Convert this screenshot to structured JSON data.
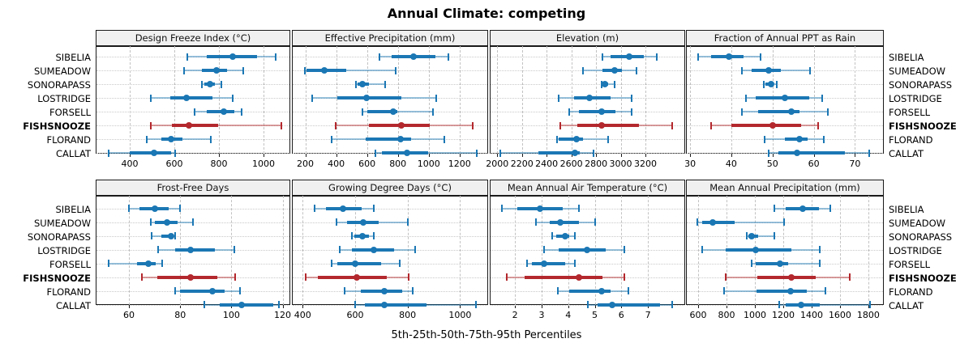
{
  "title": "Annual Climate: competing",
  "caption": "5th-25th-50th-75th-95th Percentiles",
  "sites": [
    "SIBELIA",
    "SUMEADOW",
    "SONORAPASS",
    "LOSTRIDGE",
    "FORSELL",
    "FISHSNOOZE",
    "FLORAND",
    "CALLAT"
  ],
  "highlight_site": "FISHSNOOZE",
  "colors": {
    "normal_dark": "#1B77B4",
    "normal_light": "rgba(27,119,180,0.45)",
    "highlight_dark": "#B3282D",
    "highlight_light": "rgba(179,40,45,0.45)",
    "strip_bg": "#F0F0F0",
    "gridline": "#c2c2c2"
  },
  "chart_data": {
    "type": "dotplot-percentile-intervals",
    "grid": {
      "rows": 2,
      "cols": 4
    },
    "percentiles": [
      5,
      25,
      50,
      75,
      95
    ],
    "legend_position": "none",
    "grid_on": true,
    "panels": [
      {
        "title": "Design Freeze Index (°C)",
        "ticks": [
          400,
          600,
          800,
          1000
        ],
        "xlim": [
          247,
          1120
        ],
        "series": [
          {
            "site": "SIBELIA",
            "values": [
              658,
              746,
              860,
              971,
              1055
            ]
          },
          {
            "site": "SUMEADOW",
            "values": [
              645,
              725,
              790,
              835,
              910
            ]
          },
          {
            "site": "SONORAPASS",
            "values": [
              725,
              735,
              760,
              782,
              810
            ]
          },
          {
            "site": "LOSTRIDGE",
            "values": [
              495,
              580,
              655,
              770,
              860
            ]
          },
          {
            "site": "FORSELL",
            "values": [
              690,
              745,
              820,
              870,
              900
            ]
          },
          {
            "site": "FISHSNOOZE",
            "values": [
              495,
              590,
              665,
              795,
              1080
            ]
          },
          {
            "site": "FLORAND",
            "values": [
              475,
              540,
              585,
              635,
              765
            ]
          },
          {
            "site": "CALLAT",
            "values": [
              305,
              400,
              510,
              585,
              605
            ]
          }
        ]
      },
      {
        "title": "Effective Precipitation (mm)",
        "ticks": [
          200,
          400,
          600,
          800,
          1000,
          1200
        ],
        "xlim": [
          113,
          1385
        ],
        "series": [
          {
            "site": "SIBELIA",
            "values": [
              680,
              760,
              900,
              1045,
              1130
            ]
          },
          {
            "site": "SUMEADOW",
            "values": [
              195,
              210,
              325,
              465,
              785
            ]
          },
          {
            "site": "SONORAPASS",
            "values": [
              530,
              540,
              570,
              610,
              720
            ]
          },
          {
            "site": "LOSTRIDGE",
            "values": [
              245,
              405,
              595,
              825,
              1050
            ]
          },
          {
            "site": "FORSELL",
            "values": [
              570,
              600,
              770,
              795,
              1030
            ]
          },
          {
            "site": "FISHSNOOZE",
            "values": [
              395,
              610,
              825,
              1005,
              1285
            ]
          },
          {
            "site": "FLORAND",
            "values": [
              370,
              590,
              815,
              885,
              1100
            ]
          },
          {
            "site": "CALLAT",
            "values": [
              655,
              695,
              860,
              995,
              1310
            ]
          }
        ]
      },
      {
        "title": "Elevation (m)",
        "ticks": [
          2000,
          2200,
          2400,
          2600,
          2800,
          3000,
          3200
        ],
        "xlim": [
          1939,
          3522
        ],
        "series": [
          {
            "site": "SIBELIA",
            "values": [
              2855,
              2920,
              3070,
              3190,
              3290
            ]
          },
          {
            "site": "SUMEADOW",
            "values": [
              2695,
              2855,
              2950,
              3010,
              3130
            ]
          },
          {
            "site": "SONORAPASS",
            "values": [
              2845,
              2850,
              2870,
              2900,
              2950
            ]
          },
          {
            "site": "LOSTRIDGE",
            "values": [
              2495,
              2625,
              2750,
              2920,
              3090
            ]
          },
          {
            "site": "FORSELL",
            "values": [
              2585,
              2660,
              2845,
              2960,
              3090
            ]
          },
          {
            "site": "FISHSNOOZE",
            "values": [
              2510,
              2650,
              2845,
              3150,
              3420
            ]
          },
          {
            "site": "FLORAND",
            "values": [
              2485,
              2500,
              2640,
              2695,
              2900
            ]
          },
          {
            "site": "CALLAT",
            "values": [
              2025,
              2335,
              2630,
              2670,
              2780
            ]
          }
        ]
      },
      {
        "title": "Fraction of Annual PPT as Rain",
        "ticks": [
          30,
          40,
          50,
          60,
          70
        ],
        "xlim": [
          29,
          77
        ],
        "series": [
          {
            "site": "SIBELIA",
            "values": [
              32,
              35,
              39.5,
              43,
              47
            ]
          },
          {
            "site": "SUMEADOW",
            "values": [
              42.5,
              45,
              49,
              52,
              59
            ]
          },
          {
            "site": "SONORAPASS",
            "values": [
              47.8,
              48.2,
              49.7,
              50.2,
              51
            ]
          },
          {
            "site": "LOSTRIDGE",
            "values": [
              43.5,
              46,
              53,
              59,
              62
            ]
          },
          {
            "site": "FORSELL",
            "values": [
              42.5,
              46.5,
              54.5,
              56.5,
              63.5
            ]
          },
          {
            "site": "FISHSNOOZE",
            "values": [
              35,
              40,
              50,
              57,
              61
            ]
          },
          {
            "site": "FLORAND",
            "values": [
              48,
              53,
              56.5,
              58.5,
              62.5
            ]
          },
          {
            "site": "CALLAT",
            "values": [
              49,
              51.5,
              56,
              67.5,
              73.5
            ]
          }
        ]
      },
      {
        "title": "Frost-Free Days",
        "ticks": [
          60,
          80,
          100,
          120
        ],
        "xlim": [
          47,
          123
        ],
        "series": [
          {
            "site": "SIBELIA",
            "values": [
              60,
              64,
              70,
              75.5,
              80
            ]
          },
          {
            "site": "SUMEADOW",
            "values": [
              68.5,
              70,
              75,
              79,
              85
            ]
          },
          {
            "site": "SONORAPASS",
            "values": [
              69,
              72.5,
              76.5,
              77,
              78
            ]
          },
          {
            "site": "LOSTRIDGE",
            "values": [
              71.5,
              78,
              84,
              93.5,
              101
            ]
          },
          {
            "site": "FORSELL",
            "values": [
              52,
              63,
              67.5,
              70.5,
              73
            ]
          },
          {
            "site": "FISHSNOOZE",
            "values": [
              65,
              71,
              84,
              94.5,
              101.5
            ]
          },
          {
            "site": "FLORAND",
            "values": [
              78,
              80,
              92.5,
              97.5,
              103.5
            ]
          },
          {
            "site": "CALLAT",
            "values": [
              89.5,
              95.5,
              104,
              116.5,
              118.5
            ]
          }
        ]
      },
      {
        "title": "Growing Degree Days (°C)",
        "ticks": [
          400,
          600,
          800,
          1000
        ],
        "xlim": [
          359,
          1107
        ],
        "series": [
          {
            "site": "SIBELIA",
            "values": [
              445,
              490,
              555,
              625,
              670
            ]
          },
          {
            "site": "SUMEADOW",
            "values": [
              530,
              570,
              630,
              690,
              800
            ]
          },
          {
            "site": "SONORAPASS",
            "values": [
              588,
              596,
              629,
              653,
              670
            ]
          },
          {
            "site": "LOSTRIDGE",
            "values": [
              540,
              588,
              671,
              748,
              828
            ]
          },
          {
            "site": "FORSELL",
            "values": [
              511,
              532,
              601,
              699,
              769
            ]
          },
          {
            "site": "FISHSNOOZE",
            "values": [
              410,
              459,
              606,
              722,
              804
            ]
          },
          {
            "site": "FLORAND",
            "values": [
              560,
              622,
              712,
              779,
              818
            ]
          },
          {
            "site": "CALLAT",
            "values": [
              601,
              637,
              711,
              871,
              1062
            ]
          }
        ]
      },
      {
        "title": "Mean Annual Air Temperature (°C)",
        "ticks": [
          2,
          3,
          4,
          5,
          6,
          7
        ],
        "xlim": [
          1.05,
          8.4
        ],
        "series": [
          {
            "site": "SIBELIA",
            "values": [
              1.5,
              2.1,
              2.95,
              3.8,
              4.4
            ]
          },
          {
            "site": "SUMEADOW",
            "values": [
              2.8,
              3.3,
              3.7,
              4.4,
              5.0
            ]
          },
          {
            "site": "SONORAPASS",
            "values": [
              3.4,
              3.55,
              3.9,
              4.05,
              4.25
            ]
          },
          {
            "site": "LOSTRIDGE",
            "values": [
              3.1,
              3.65,
              4.7,
              5.4,
              6.1
            ]
          },
          {
            "site": "FORSELL",
            "values": [
              2.45,
              2.65,
              3.1,
              3.9,
              4.25
            ]
          },
          {
            "site": "FISHSNOOZE",
            "values": [
              1.7,
              2.35,
              4.4,
              5.3,
              6.1
            ]
          },
          {
            "site": "FLORAND",
            "values": [
              3.6,
              4.05,
              5.25,
              5.6,
              6.25
            ]
          },
          {
            "site": "CALLAT",
            "values": [
              4.75,
              5.1,
              5.65,
              7.45,
              7.9
            ]
          }
        ]
      },
      {
        "title": "Mean Annual Precipitation (mm)",
        "ticks": [
          600,
          800,
          1000,
          1200,
          1400,
          1600,
          1800
        ],
        "xlim": [
          514,
          1909
        ],
        "series": [
          {
            "site": "SIBELIA",
            "values": [
              1135,
              1215,
              1335,
              1450,
              1530
            ]
          },
          {
            "site": "SUMEADOW",
            "values": [
              595,
              630,
              700,
              855,
              1205
            ]
          },
          {
            "site": "SONORAPASS",
            "values": [
              945,
              955,
              975,
              1025,
              1135
            ]
          },
          {
            "site": "LOSTRIDGE",
            "values": [
              630,
              795,
              1005,
              1260,
              1455
            ]
          },
          {
            "site": "FORSELL",
            "values": [
              975,
              1005,
              1175,
              1235,
              1455
            ]
          },
          {
            "site": "FISHSNOOZE",
            "values": [
              795,
              1015,
              1255,
              1430,
              1670
            ]
          },
          {
            "site": "FLORAND",
            "values": [
              785,
              1010,
              1250,
              1365,
              1500
            ]
          },
          {
            "site": "CALLAT",
            "values": [
              1170,
              1215,
              1325,
              1460,
              1810
            ]
          }
        ]
      }
    ]
  }
}
